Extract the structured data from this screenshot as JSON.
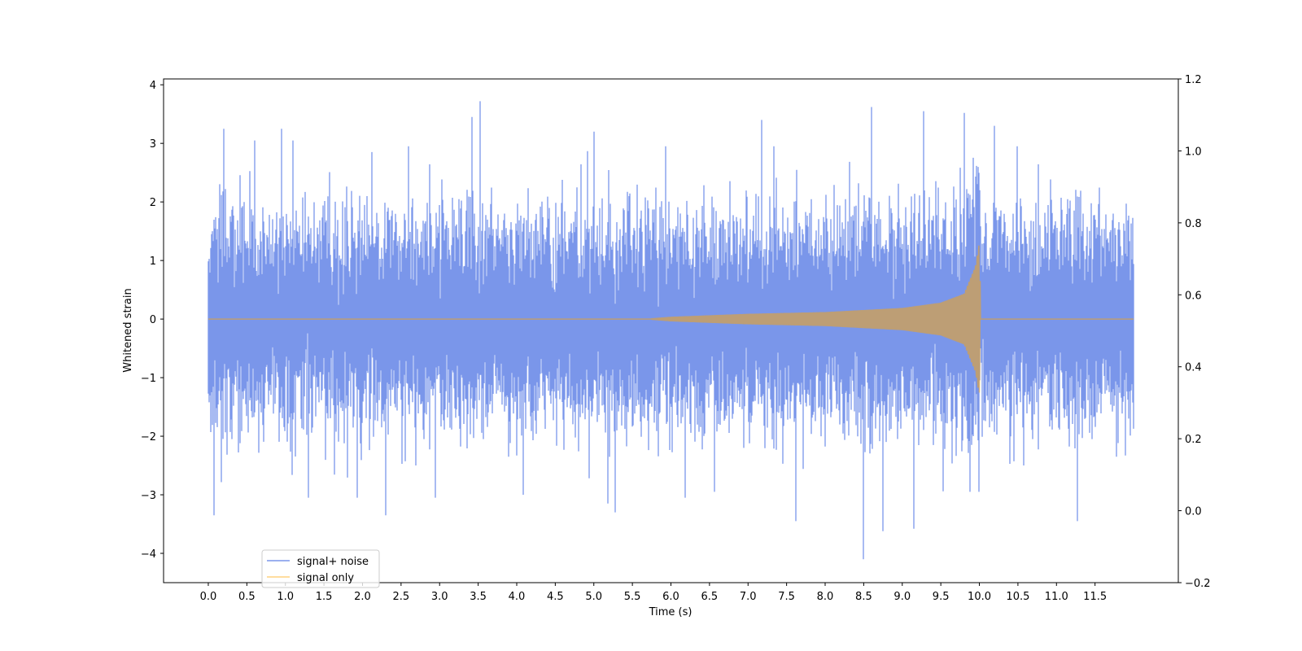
{
  "chart_data": {
    "type": "line",
    "title": "",
    "xlabel": "Time (s)",
    "ylabel": "Whitened strain",
    "y2label": "",
    "xlim": [
      -0.58,
      12.58
    ],
    "ylim": [
      -4.5,
      4.1
    ],
    "y2lim": [
      -0.2,
      1.2
    ],
    "x_ticks": [
      "0.0",
      "0.5",
      "1.0",
      "1.5",
      "2.0",
      "2.5",
      "3.0",
      "3.5",
      "4.0",
      "4.5",
      "5.0",
      "5.5",
      "6.0",
      "6.5",
      "7.0",
      "7.5",
      "8.0",
      "8.5",
      "9.0",
      "9.5",
      "10.0",
      "10.5",
      "11.0",
      "11.5"
    ],
    "y_ticks": [
      "4",
      "3",
      "2",
      "1",
      "0",
      "−1",
      "−2",
      "−3",
      "−4"
    ],
    "y2_ticks": [
      "1.2",
      "1.0",
      "0.8",
      "0.6",
      "0.4",
      "0.2",
      "0.0",
      "−0.2"
    ],
    "grid": false,
    "legend_position": "lower-left",
    "time_range": [
      0.0,
      12.0
    ],
    "series": [
      {
        "name": "signal+ noise",
        "color": "#4169e1",
        "opacity": 0.7,
        "kind": "white-noise",
        "noise_sigma": 0.8,
        "extremes": [
          {
            "x": 0.07,
            "y": -3.35
          },
          {
            "x": 0.2,
            "y": 3.25
          },
          {
            "x": 0.6,
            "y": 3.05
          },
          {
            "x": 0.95,
            "y": 3.25
          },
          {
            "x": 1.1,
            "y": 3.05
          },
          {
            "x": 1.3,
            "y": -3.05
          },
          {
            "x": 1.93,
            "y": -3.05
          },
          {
            "x": 2.3,
            "y": -3.35
          },
          {
            "x": 2.95,
            "y": -3.05
          },
          {
            "x": 3.42,
            "y": 3.45
          },
          {
            "x": 3.52,
            "y": 3.72
          },
          {
            "x": 4.08,
            "y": -3.0
          },
          {
            "x": 5.0,
            "y": 3.2
          },
          {
            "x": 5.18,
            "y": -3.15
          },
          {
            "x": 5.28,
            "y": -3.3
          },
          {
            "x": 6.18,
            "y": -3.05
          },
          {
            "x": 7.18,
            "y": 3.4
          },
          {
            "x": 7.62,
            "y": -3.45
          },
          {
            "x": 8.5,
            "y": -4.1
          },
          {
            "x": 8.6,
            "y": 3.62
          },
          {
            "x": 8.75,
            "y": -3.62
          },
          {
            "x": 9.15,
            "y": -3.58
          },
          {
            "x": 9.28,
            "y": 3.55
          },
          {
            "x": 9.8,
            "y": 3.52
          },
          {
            "x": 10.2,
            "y": 3.3
          },
          {
            "x": 11.27,
            "y": -3.45
          }
        ]
      },
      {
        "name": "signal only",
        "color": "#ffa500",
        "opacity": 0.5,
        "kind": "chirp",
        "envelope": [
          {
            "t": 0.0,
            "amp": 0.0
          },
          {
            "t": 5.7,
            "amp": 0.0
          },
          {
            "t": 6.0,
            "amp": 0.03
          },
          {
            "t": 7.0,
            "amp": 0.08
          },
          {
            "t": 8.0,
            "amp": 0.11
          },
          {
            "t": 9.0,
            "amp": 0.18
          },
          {
            "t": 9.5,
            "amp": 0.27
          },
          {
            "t": 9.8,
            "amp": 0.42
          },
          {
            "t": 9.95,
            "amp": 0.9
          },
          {
            "t": 10.0,
            "amp": 1.3
          },
          {
            "t": 10.01,
            "amp": 0.0
          },
          {
            "t": 12.0,
            "amp": 0.0
          }
        ]
      }
    ]
  }
}
